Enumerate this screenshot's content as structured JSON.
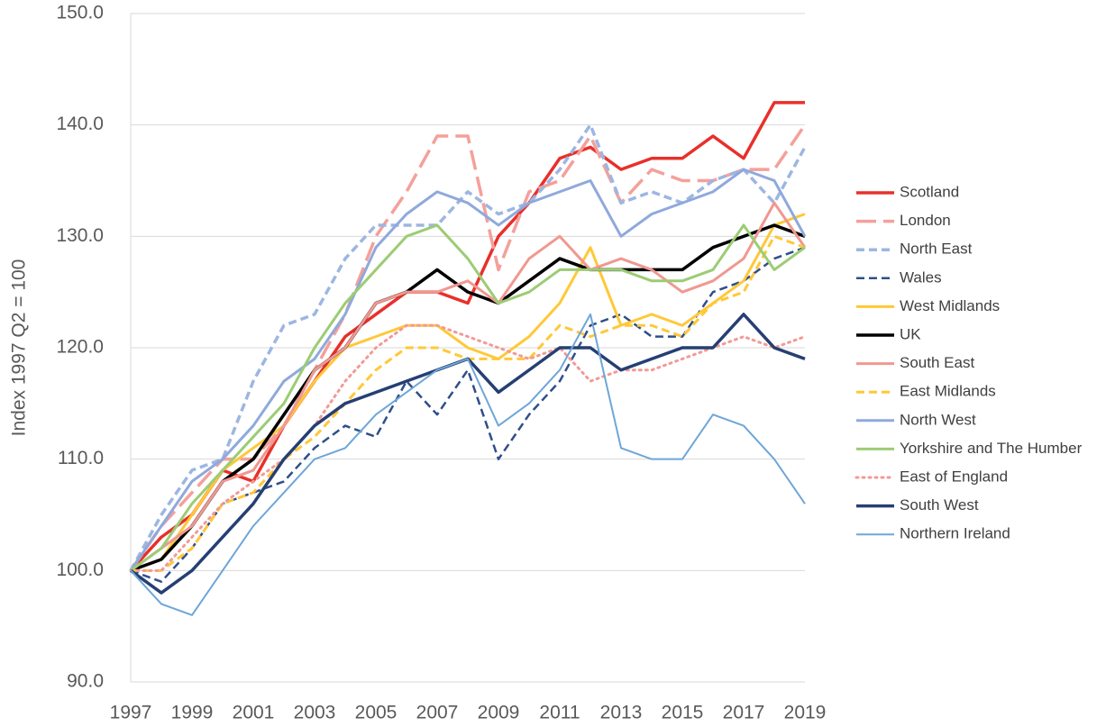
{
  "chart_data": {
    "type": "line",
    "y_label": "Index 1997 Q2 = 100",
    "x": [
      1997,
      1998,
      1999,
      2000,
      2001,
      2002,
      2003,
      2004,
      2005,
      2006,
      2007,
      2008,
      2009,
      2010,
      2011,
      2012,
      2013,
      2014,
      2015,
      2016,
      2017,
      2018,
      2019
    ],
    "xlim": [
      1997,
      2019
    ],
    "xticks": [
      1997,
      1999,
      2001,
      2003,
      2005,
      2007,
      2009,
      2011,
      2013,
      2015,
      2017,
      2019
    ],
    "ylim": [
      90,
      150
    ],
    "yticks": [
      {
        "value": 90,
        "label": "90.0"
      },
      {
        "value": 100,
        "label": "100.0"
      },
      {
        "value": 110,
        "label": "110.0"
      },
      {
        "value": 120,
        "label": "120.0"
      },
      {
        "value": 130,
        "label": "130.0"
      },
      {
        "value": 140,
        "label": "140.0"
      },
      {
        "value": 150,
        "label": "150.0"
      }
    ],
    "grid": true,
    "legend": "right",
    "series": [
      {
        "name": "Scotland",
        "color": "#e8302a",
        "style": "solid",
        "linewidth": 3.5,
        "values": [
          100,
          103,
          105,
          109,
          108,
          113,
          117,
          121,
          123,
          125,
          125,
          124,
          130,
          133,
          137,
          138,
          136,
          137,
          137,
          139,
          137,
          142,
          142
        ]
      },
      {
        "name": "London",
        "color": "#f4a09a",
        "style": "longdash",
        "linewidth": 3.5,
        "values": [
          100,
          104,
          107,
          110,
          110,
          113,
          118,
          123,
          130,
          134,
          139,
          139,
          127,
          134,
          135,
          139,
          133,
          136,
          135,
          135,
          136,
          136,
          140
        ]
      },
      {
        "name": "North East",
        "color": "#9db6e2",
        "style": "dashed",
        "linewidth": 3.5,
        "values": [
          100,
          105,
          109,
          110,
          117,
          122,
          123,
          128,
          131,
          131,
          131,
          134,
          132,
          133,
          136,
          140,
          133,
          134,
          133,
          135,
          136,
          133,
          138
        ]
      },
      {
        "name": "Wales",
        "color": "#2f4f8a",
        "style": "dashed",
        "linewidth": 2.5,
        "values": [
          100,
          99,
          102,
          106,
          107,
          108,
          111,
          113,
          112,
          117,
          114,
          118,
          110,
          114,
          117,
          122,
          123,
          121,
          121,
          125,
          126,
          128,
          129
        ]
      },
      {
        "name": "West Midlands",
        "color": "#ffc837",
        "style": "solid",
        "linewidth": 3,
        "values": [
          100,
          101,
          105,
          109,
          111,
          113,
          117,
          120,
          121,
          122,
          122,
          120,
          119,
          121,
          124,
          129,
          122,
          123,
          122,
          124,
          126,
          131,
          132
        ]
      },
      {
        "name": "UK",
        "color": "#000000",
        "style": "solid",
        "linewidth": 3.5,
        "values": [
          100,
          101,
          104,
          108,
          110,
          114,
          118,
          120,
          124,
          125,
          127,
          125,
          124,
          126,
          128,
          127,
          127,
          127,
          127,
          129,
          130,
          131,
          130
        ]
      },
      {
        "name": "South East",
        "color": "#f09890",
        "style": "solid",
        "linewidth": 3,
        "values": [
          100,
          102,
          104,
          108,
          109,
          113,
          118,
          120,
          124,
          125,
          125,
          126,
          124,
          128,
          130,
          127,
          128,
          127,
          125,
          126,
          128,
          133,
          129
        ]
      },
      {
        "name": "East Midlands",
        "color": "#ffc837",
        "style": "dashed",
        "linewidth": 3,
        "values": [
          100,
          100,
          102,
          106,
          107,
          110,
          112,
          115,
          118,
          120,
          120,
          119,
          119,
          119,
          122,
          121,
          122,
          122,
          121,
          124,
          125,
          130,
          129
        ]
      },
      {
        "name": "North West",
        "color": "#8fa9dc",
        "style": "solid",
        "linewidth": 3,
        "values": [
          100,
          104,
          108,
          110,
          113,
          117,
          119,
          123,
          129,
          132,
          134,
          133,
          131,
          133,
          134,
          135,
          130,
          132,
          133,
          134,
          136,
          135,
          130
        ]
      },
      {
        "name": "Yorkshire and The Humber",
        "color": "#9ccc74",
        "style": "solid",
        "linewidth": 3,
        "values": [
          100,
          102,
          106,
          109,
          112,
          115,
          120,
          124,
          127,
          130,
          131,
          128,
          124,
          125,
          127,
          127,
          127,
          126,
          126,
          127,
          131,
          127,
          129
        ]
      },
      {
        "name": "East of England",
        "color": "#f29a95",
        "style": "dotted",
        "linewidth": 3,
        "values": [
          100,
          100,
          103,
          106,
          108,
          110,
          113,
          117,
          120,
          122,
          122,
          121,
          120,
          119,
          120,
          117,
          118,
          118,
          119,
          120,
          121,
          120,
          121
        ]
      },
      {
        "name": "South West",
        "color": "#263f73",
        "style": "solid",
        "linewidth": 3.5,
        "values": [
          100,
          98,
          100,
          103,
          106,
          110,
          113,
          115,
          116,
          117,
          118,
          119,
          116,
          118,
          120,
          120,
          118,
          119,
          120,
          120,
          123,
          120,
          119
        ]
      },
      {
        "name": "Northern Ireland",
        "color": "#6ea6d8",
        "style": "solid",
        "linewidth": 2,
        "values": [
          100,
          97,
          96,
          100,
          104,
          107,
          110,
          111,
          114,
          116,
          118,
          119,
          113,
          115,
          118,
          123,
          111,
          110,
          110,
          114,
          113,
          110,
          106
        ]
      }
    ]
  }
}
